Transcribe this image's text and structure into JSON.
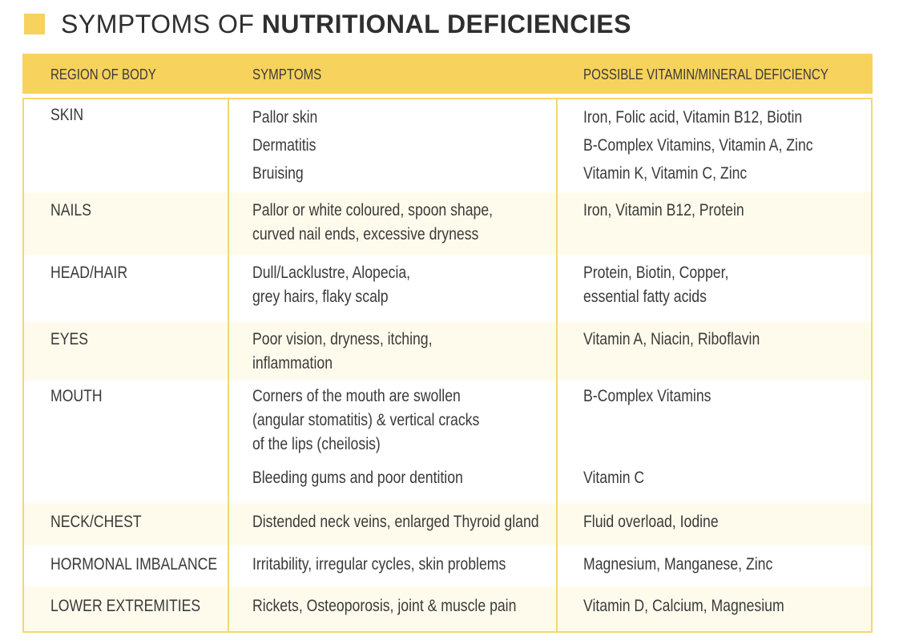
{
  "title": {
    "normal": "SYMPTOMS OF ",
    "bold": "NUTRITIONAL DEFICIENCIES"
  },
  "headers": {
    "region": "REGION OF BODY",
    "symptoms": "SYMPTOMS",
    "deficiency": "POSSIBLE VITAMIN/MINERAL DEFICIENCY"
  },
  "colors": {
    "accent": "#f7d25c",
    "border": "#f5d76e",
    "row_shade": "#fffbec",
    "text": "#3a3a3a"
  },
  "rows": [
    {
      "region": "SKIN",
      "symptoms": [
        "Pallor skin",
        "Dermatitis",
        "Bruising"
      ],
      "deficiency": [
        "Iron, Folic acid, Vitamin B12, Biotin",
        "B-Complex Vitamins, Vitamin A, Zinc",
        "Vitamin K, Vitamin C, Zinc"
      ]
    },
    {
      "region": "NAILS",
      "symptoms": [
        "Pallor or white coloured, spoon shape,",
        "curved nail ends, excessive dryness"
      ],
      "deficiency": [
        "Iron, Vitamin B12, Protein"
      ]
    },
    {
      "region": "HEAD/HAIR",
      "symptoms": [
        "Dull/Lacklustre, Alopecia,",
        "grey hairs, flaky scalp"
      ],
      "deficiency": [
        "Protein, Biotin, Copper,",
        "essential fatty acids"
      ]
    },
    {
      "region": "EYES",
      "symptoms": [
        "Poor vision, dryness, itching,",
        "inflammation"
      ],
      "deficiency": [
        "Vitamin A, Niacin, Riboflavin"
      ]
    },
    {
      "region": "MOUTH",
      "symptoms": [
        "Corners of the mouth are swollen",
        "(angular stomatitis) & vertical cracks",
        "of the lips (cheilosis)"
      ],
      "symptoms_2": "Bleeding gums and poor dentition",
      "deficiency": [
        "B-Complex Vitamins"
      ],
      "deficiency_2": "Vitamin C"
    },
    {
      "region": "NECK/CHEST",
      "symptoms": [
        "Distended neck veins, enlarged Thyroid gland"
      ],
      "deficiency": [
        "Fluid overload, Iodine"
      ]
    },
    {
      "region": "HORMONAL IMBALANCE",
      "symptoms": [
        "Irritability, irregular cycles, skin problems"
      ],
      "deficiency": [
        "Magnesium, Manganese, Zinc"
      ]
    },
    {
      "region": "LOWER EXTREMITIES",
      "symptoms": [
        "Rickets, Osteoporosis, joint & muscle pain"
      ],
      "deficiency": [
        "Vitamin D, Calcium, Magnesium"
      ]
    }
  ]
}
